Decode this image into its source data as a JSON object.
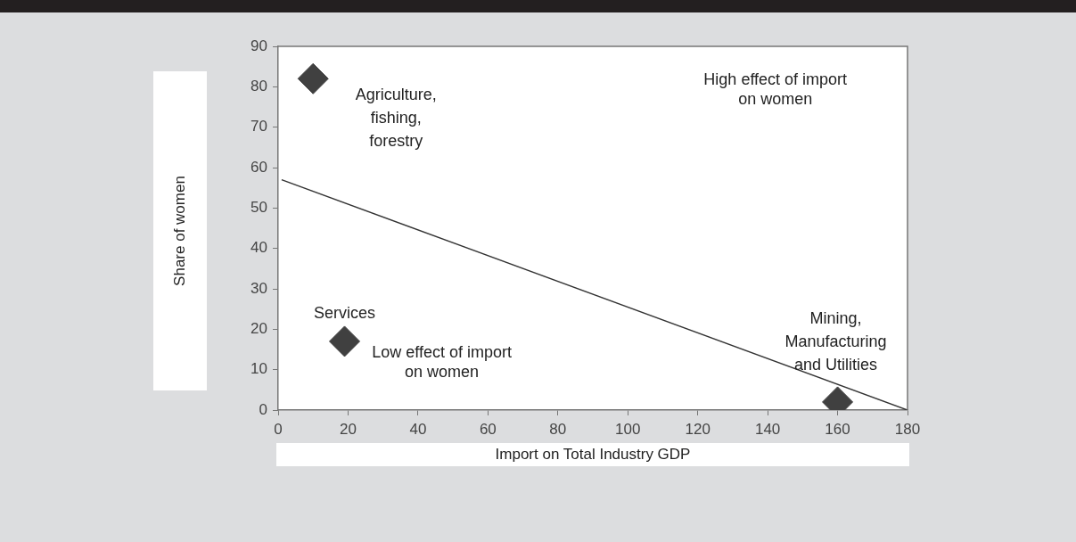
{
  "chart_data": {
    "type": "scatter",
    "xlabel": "Import on Total Industry GDP",
    "ylabel": "Share of women",
    "xlim": [
      0,
      180
    ],
    "xticks": [
      0,
      20,
      40,
      60,
      80,
      100,
      120,
      140,
      160,
      180
    ],
    "ylim": [
      0,
      90
    ],
    "yticks": [
      0,
      10,
      20,
      30,
      40,
      50,
      60,
      70,
      80,
      90
    ],
    "grid": false,
    "legend": false,
    "series": [
      {
        "type": "scatter",
        "color": "#404040",
        "x": [
          10,
          19,
          160
        ],
        "values": [
          82,
          17,
          2
        ],
        "marker": "diamond"
      },
      {
        "type": "line",
        "color": "#333333",
        "x": [
          1,
          180
        ],
        "values": [
          57,
          0
        ],
        "marker": "none",
        "line_style": "solid"
      }
    ],
    "annotations": [
      {
        "text": "Agriculture,\nfishing,\nforestry",
        "x": 10,
        "y": 82
      },
      {
        "text": "Services",
        "x": 19,
        "y": 17
      },
      {
        "text": "Mining,\nManufacturing\nand Utilities",
        "x": 160,
        "y": 2
      },
      "High effect of import\non women",
      "Low effect of import\non women"
    ]
  }
}
